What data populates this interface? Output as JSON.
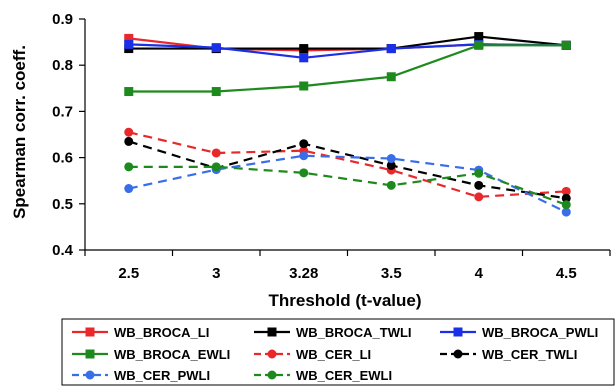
{
  "chart_data": {
    "type": "line",
    "title": "",
    "xlabel": "Threshold (t-value)",
    "ylabel": "Spearman corr. coeff.",
    "categories": [
      "2.5",
      "3",
      "3.28",
      "3.5",
      "4",
      "4.5"
    ],
    "ylim": [
      0.4,
      0.9
    ],
    "yticks": [
      "0.4",
      "0.5",
      "0.6",
      "0.7",
      "0.8",
      "0.9"
    ],
    "grid": false,
    "legend_position": "bottom",
    "series": [
      {
        "name": "WB_BROCA_LI",
        "color": "#e8282b",
        "style": "solid",
        "marker": "square",
        "values": [
          0.858,
          0.836,
          0.832,
          0.836,
          0.845,
          0.843
        ]
      },
      {
        "name": "WB_BROCA_TWLI",
        "color": "#000000",
        "style": "solid",
        "marker": "square",
        "values": [
          0.836,
          0.836,
          0.836,
          0.836,
          0.862,
          0.843
        ]
      },
      {
        "name": "WB_BROCA_PWLI",
        "color": "#1a2fe6",
        "style": "solid",
        "marker": "square",
        "values": [
          0.845,
          0.838,
          0.816,
          0.836,
          0.845,
          0.843
        ]
      },
      {
        "name": "WB_BROCA_EWLI",
        "color": "#1e8a1e",
        "style": "solid",
        "marker": "square",
        "values": [
          0.743,
          0.743,
          0.755,
          0.775,
          0.843,
          0.843
        ]
      },
      {
        "name": "WB_CER_LI",
        "color": "#e8282b",
        "style": "dashed",
        "marker": "circle",
        "values": [
          0.655,
          0.61,
          0.615,
          0.573,
          0.515,
          0.527
        ]
      },
      {
        "name": "WB_CER_TWLI",
        "color": "#000000",
        "style": "dashed",
        "marker": "circle",
        "values": [
          0.635,
          0.577,
          0.63,
          0.583,
          0.54,
          0.512
        ]
      },
      {
        "name": "WB_CER_PWLI",
        "color": "#3a6ee8",
        "style": "dashed",
        "marker": "circle",
        "values": [
          0.533,
          0.574,
          0.604,
          0.598,
          0.573,
          0.482
        ]
      },
      {
        "name": "WB_CER_EWLI",
        "color": "#1e8a1e",
        "style": "dashed",
        "marker": "circle",
        "values": [
          0.58,
          0.58,
          0.567,
          0.54,
          0.566,
          0.498
        ]
      }
    ]
  }
}
